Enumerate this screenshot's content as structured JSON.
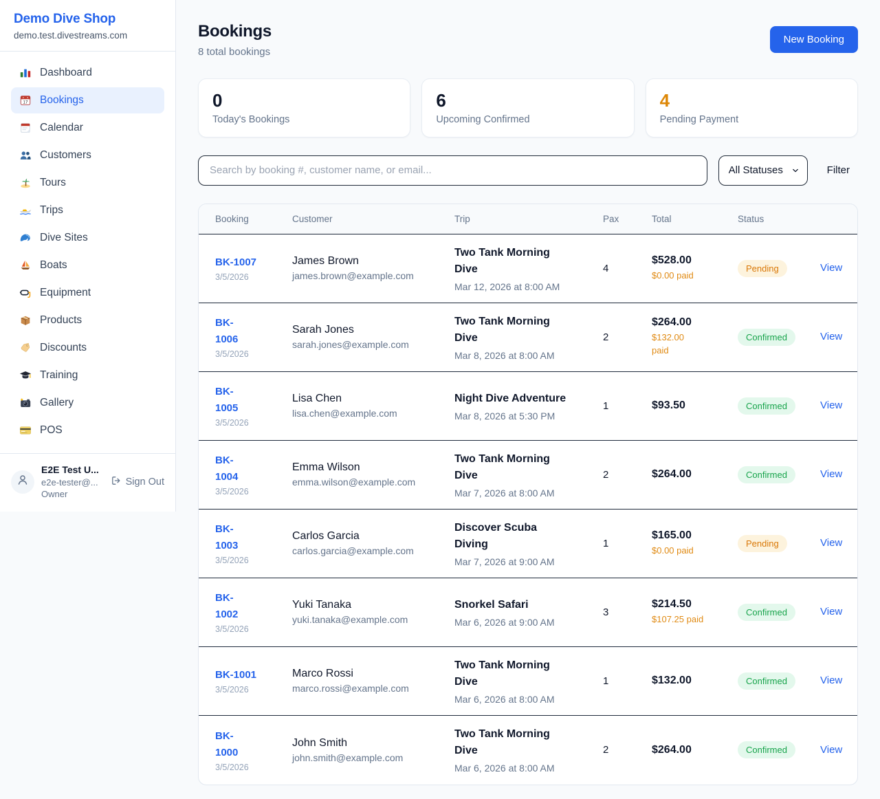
{
  "app": {
    "name": "Demo Dive Shop",
    "domain": "demo.test.divestreams.com"
  },
  "colors": {
    "accent_blue": "#2563eb",
    "pending_orange": "#d97706",
    "confirmed_green": "#16a34a",
    "pending_badge_bg": "#fdf3dd",
    "confirmed_badge_bg": "#e3f8ec"
  },
  "sidebar": {
    "items": [
      {
        "label": "Dashboard",
        "icon": "bar-chart",
        "active": false
      },
      {
        "label": "Bookings",
        "icon": "bookings-calendar",
        "active": true
      },
      {
        "label": "Calendar",
        "icon": "calendar",
        "active": false
      },
      {
        "label": "Customers",
        "icon": "people",
        "active": false
      },
      {
        "label": "Tours",
        "icon": "island",
        "active": false
      },
      {
        "label": "Trips",
        "icon": "speedboat",
        "active": false
      },
      {
        "label": "Dive Sites",
        "icon": "wave",
        "active": false
      },
      {
        "label": "Boats",
        "icon": "sailboat",
        "active": false
      },
      {
        "label": "Equipment",
        "icon": "dive-mask",
        "active": false
      },
      {
        "label": "Products",
        "icon": "package",
        "active": false
      },
      {
        "label": "Discounts",
        "icon": "tag",
        "active": false
      },
      {
        "label": "Training",
        "icon": "graduation-cap",
        "active": false
      },
      {
        "label": "Gallery",
        "icon": "camera",
        "active": false
      },
      {
        "label": "POS",
        "icon": "credit-card",
        "active": false
      }
    ],
    "user": {
      "name": "E2E Test U...",
      "email": "e2e-tester@...",
      "role": "Owner",
      "sign_out_label": "Sign Out"
    }
  },
  "header": {
    "title": "Bookings",
    "subtitle": "8 total bookings",
    "new_booking_label": "New Booking"
  },
  "stats": [
    {
      "value": "0",
      "label": "Today's Bookings"
    },
    {
      "value": "6",
      "label": "Upcoming Confirmed"
    },
    {
      "value": "4",
      "label": "Pending Payment"
    }
  ],
  "filters": {
    "search_placeholder": "Search by booking #, customer name, or email...",
    "status_selected": "All Statuses",
    "filter_label": "Filter"
  },
  "table": {
    "columns": [
      "Booking",
      "Customer",
      "Trip",
      "Pax",
      "Total",
      "Status"
    ],
    "rows": [
      {
        "id": "BK-1007",
        "date": "3/5/2026",
        "customer": "James Brown",
        "email": "james.brown@example.com",
        "trip": "Two Tank Morning\nDive",
        "trip_time": "Mar 12, 2026 at 8:00 AM",
        "pax": "4",
        "total": "$528.00",
        "paid": "$0.00 paid",
        "status": "Pending",
        "action": "View"
      },
      {
        "id": "BK-\n1006",
        "date": "3/5/2026",
        "customer": "Sarah Jones",
        "email": "sarah.jones@example.com",
        "trip": "Two Tank Morning\nDive",
        "trip_time": "Mar 8, 2026 at 8:00 AM",
        "pax": "2",
        "total": "$264.00",
        "paid": "$132.00\npaid",
        "status": "Confirmed",
        "action": "View"
      },
      {
        "id": "BK-\n1005",
        "date": "3/5/2026",
        "customer": "Lisa Chen",
        "email": "lisa.chen@example.com",
        "trip": "Night Dive Adventure",
        "trip_time": "Mar 8, 2026 at 5:30 PM",
        "pax": "1",
        "total": "$93.50",
        "paid": "",
        "status": "Confirmed",
        "action": "View"
      },
      {
        "id": "BK-\n1004",
        "date": "3/5/2026",
        "customer": "Emma Wilson",
        "email": "emma.wilson@example.com",
        "trip": "Two Tank Morning\nDive",
        "trip_time": "Mar 7, 2026 at 8:00 AM",
        "pax": "2",
        "total": "$264.00",
        "paid": "",
        "status": "Confirmed",
        "action": "View"
      },
      {
        "id": "BK-\n1003",
        "date": "3/5/2026",
        "customer": "Carlos Garcia",
        "email": "carlos.garcia@example.com",
        "trip": "Discover Scuba\nDiving",
        "trip_time": "Mar 7, 2026 at 9:00 AM",
        "pax": "1",
        "total": "$165.00",
        "paid": "$0.00 paid",
        "status": "Pending",
        "action": "View"
      },
      {
        "id": "BK-\n1002",
        "date": "3/5/2026",
        "customer": "Yuki Tanaka",
        "email": "yuki.tanaka@example.com",
        "trip": "Snorkel Safari",
        "trip_time": "Mar 6, 2026 at 9:00 AM",
        "pax": "3",
        "total": "$214.50",
        "paid": "$107.25 paid",
        "status": "Confirmed",
        "action": "View"
      },
      {
        "id": "BK-1001",
        "date": "3/5/2026",
        "customer": "Marco Rossi",
        "email": "marco.rossi@example.com",
        "trip": "Two Tank Morning\nDive",
        "trip_time": "Mar 6, 2026 at 8:00 AM",
        "pax": "1",
        "total": "$132.00",
        "paid": "",
        "status": "Confirmed",
        "action": "View"
      },
      {
        "id": "BK-\n1000",
        "date": "3/5/2026",
        "customer": "John Smith",
        "email": "john.smith@example.com",
        "trip": "Two Tank Morning\nDive",
        "trip_time": "Mar 6, 2026 at 8:00 AM",
        "pax": "2",
        "total": "$264.00",
        "paid": "",
        "status": "Confirmed",
        "action": "View"
      }
    ]
  }
}
